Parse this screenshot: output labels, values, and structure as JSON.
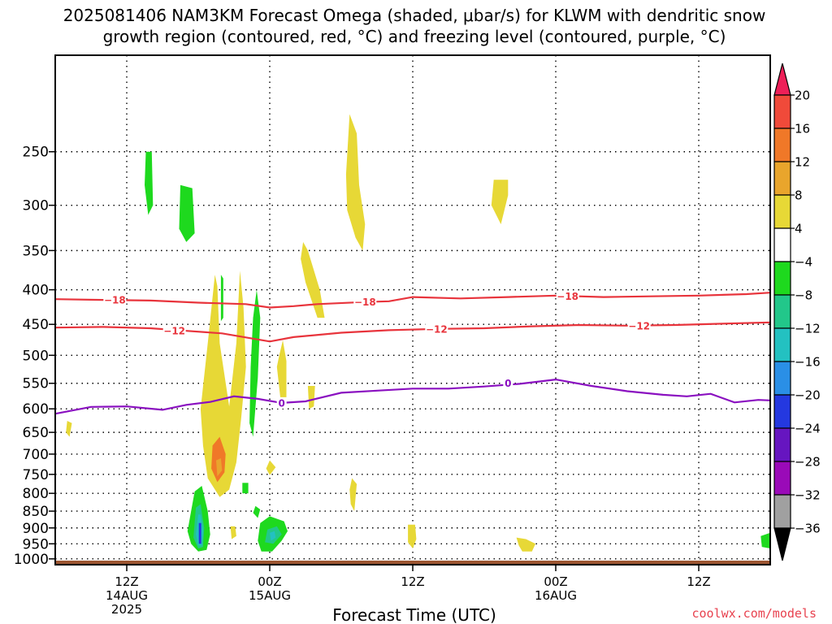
{
  "chart_data": {
    "type": "time-height cross section",
    "title_line1": "2025081406 NAM3KM Forecast Omega (shaded, μbar/s) for KLWM with dendritic snow",
    "title_line2": "growth region (contoured, red, °C) and freezing level (contoured, purple, °C)",
    "xlabel": "Forecast Time (UTC)",
    "credit": "coolwx.com/models",
    "xlim": [
      0,
      60
    ],
    "ylim": [
      1020,
      180
    ],
    "y_scale": "log-pressure",
    "y_ticks": [
      250,
      300,
      350,
      400,
      450,
      500,
      550,
      600,
      650,
      700,
      750,
      800,
      850,
      900,
      950,
      1000
    ],
    "x_ticks": [
      {
        "h": 6,
        "lines": [
          "12Z",
          "14AUG",
          "2025"
        ]
      },
      {
        "h": 18,
        "lines": [
          "00Z",
          "15AUG"
        ]
      },
      {
        "h": 30,
        "lines": [
          "12Z"
        ]
      },
      {
        "h": 42,
        "lines": [
          "00Z",
          "16AUG"
        ]
      },
      {
        "h": 54,
        "lines": [
          "12Z"
        ]
      }
    ],
    "grid": true,
    "colorbar": {
      "placement": "right",
      "labels": [
        "20",
        "16",
        "12",
        "8",
        "4",
        "−4",
        "−8",
        "−12",
        "−16",
        "−20",
        "−24",
        "−28",
        "−32",
        "−36"
      ],
      "colors_top_to_bottom": [
        "#ee1f58",
        "#f04a3a",
        "#f07828",
        "#e9a52c",
        "#e7d836",
        "#ffffff",
        "#1ed91e",
        "#22c78a",
        "#23c1c1",
        "#2a8fe6",
        "#2438e0",
        "#6615c0",
        "#9a0ab8",
        "#a0a0a0",
        "#000000"
      ]
    },
    "dendritic_contours": [
      {
        "label": "−18",
        "color": "#e8343c",
        "points": [
          [
            0,
            413
          ],
          [
            4,
            414
          ],
          [
            8,
            415
          ],
          [
            12,
            418
          ],
          [
            16,
            420
          ],
          [
            18,
            425
          ],
          [
            20,
            423
          ],
          [
            22,
            420
          ],
          [
            26,
            417
          ],
          [
            28,
            416
          ],
          [
            30,
            410
          ],
          [
            34,
            412
          ],
          [
            38,
            410
          ],
          [
            42,
            408
          ],
          [
            46,
            410
          ],
          [
            50,
            409
          ],
          [
            54,
            408
          ],
          [
            58,
            406
          ],
          [
            60,
            404
          ]
        ],
        "label_at": [
          [
            5,
            414
          ],
          [
            26,
            417
          ],
          [
            43,
            409
          ]
        ]
      },
      {
        "label": "−12",
        "color": "#e8343c",
        "points": [
          [
            0,
            455
          ],
          [
            4,
            454
          ],
          [
            8,
            456
          ],
          [
            11,
            460
          ],
          [
            14,
            464
          ],
          [
            18,
            477
          ],
          [
            20,
            470
          ],
          [
            24,
            463
          ],
          [
            28,
            459
          ],
          [
            32,
            457
          ],
          [
            36,
            456
          ],
          [
            40,
            453
          ],
          [
            44,
            451
          ],
          [
            48,
            452
          ],
          [
            52,
            451
          ],
          [
            56,
            449
          ],
          [
            60,
            447
          ]
        ],
        "label_at": [
          [
            10,
            460
          ],
          [
            32,
            457
          ],
          [
            49,
            452
          ]
        ]
      }
    ],
    "freezing_level": {
      "label": "0",
      "color": "#8a10c0",
      "points": [
        [
          0,
          610
        ],
        [
          3,
          596
        ],
        [
          6,
          595
        ],
        [
          9,
          602
        ],
        [
          11,
          592
        ],
        [
          13,
          586
        ],
        [
          15,
          575
        ],
        [
          17,
          580
        ],
        [
          19,
          588
        ],
        [
          21,
          585
        ],
        [
          24,
          568
        ],
        [
          27,
          564
        ],
        [
          30,
          560
        ],
        [
          33,
          560
        ],
        [
          36,
          556
        ],
        [
          39,
          551
        ],
        [
          42,
          543
        ],
        [
          45,
          555
        ],
        [
          48,
          565
        ],
        [
          51,
          572
        ],
        [
          53,
          575
        ],
        [
          55,
          570
        ],
        [
          57,
          587
        ],
        [
          59,
          582
        ],
        [
          60,
          583
        ]
      ],
      "label_at": [
        [
          19,
          588
        ],
        [
          38,
          550
        ]
      ]
    },
    "omega_shading": [
      {
        "color": "#e7d836",
        "points": [
          [
            12.2,
            600
          ],
          [
            12.8,
            480
          ],
          [
            13.4,
            380
          ],
          [
            13.6,
            395
          ],
          [
            13.8,
            480
          ],
          [
            14.6,
            595
          ],
          [
            15.2,
            480
          ],
          [
            15.5,
            375
          ],
          [
            15.8,
            425
          ],
          [
            16,
            520
          ],
          [
            15.6,
            620
          ],
          [
            15.2,
            720
          ],
          [
            14.6,
            790
          ],
          [
            13.8,
            810
          ],
          [
            12.8,
            760
          ],
          [
            12.4,
            680
          ]
        ]
      },
      {
        "color": "#1ed91e",
        "points": [
          [
            13.9,
            380
          ],
          [
            14.1,
            385
          ],
          [
            14.1,
            440
          ],
          [
            13.9,
            445
          ]
        ]
      },
      {
        "color": "#f07828",
        "points": [
          [
            13.2,
            680
          ],
          [
            13.8,
            660
          ],
          [
            14.3,
            700
          ],
          [
            14.2,
            745
          ],
          [
            13.6,
            770
          ],
          [
            13.1,
            735
          ]
        ]
      },
      {
        "color": "#e9a52c",
        "points": [
          [
            13.5,
            715
          ],
          [
            13.9,
            710
          ],
          [
            14.0,
            740
          ],
          [
            13.6,
            755
          ]
        ]
      },
      {
        "color": "#1ed91e",
        "points": [
          [
            16.6,
            440
          ],
          [
            16.9,
            400
          ],
          [
            17.2,
            440
          ],
          [
            17.0,
            540
          ],
          [
            16.6,
            660
          ],
          [
            16.3,
            630
          ],
          [
            16.4,
            520
          ]
        ]
      },
      {
        "color": "#e7d836",
        "points": [
          [
            18.8,
            500
          ],
          [
            19.1,
            475
          ],
          [
            19.4,
            510
          ],
          [
            19.4,
            580
          ],
          [
            18.9,
            580
          ],
          [
            18.6,
            520
          ]
        ]
      },
      {
        "color": "#e7d836",
        "points": [
          [
            21.2,
            555
          ],
          [
            21.8,
            555
          ],
          [
            21.7,
            595
          ],
          [
            21.3,
            600
          ]
        ]
      },
      {
        "color": "#e7d836",
        "points": [
          [
            20.8,
            340
          ],
          [
            21.2,
            350
          ],
          [
            22.2,
            400
          ],
          [
            22.6,
            440
          ],
          [
            22.0,
            440
          ],
          [
            21.0,
            390
          ],
          [
            20.6,
            360
          ]
        ]
      },
      {
        "color": "#e7d836",
        "points": [
          [
            24.7,
            220
          ],
          [
            25.3,
            235
          ],
          [
            25.5,
            280
          ],
          [
            26.0,
            320
          ],
          [
            25.8,
            350
          ],
          [
            25.2,
            335
          ],
          [
            24.5,
            305
          ],
          [
            24.4,
            270
          ]
        ]
      },
      {
        "color": "#e7d836",
        "points": [
          [
            36.8,
            275
          ],
          [
            38.0,
            275
          ],
          [
            38.0,
            290
          ],
          [
            37.4,
            320
          ],
          [
            36.6,
            300
          ]
        ]
      },
      {
        "color": "#1ed91e",
        "points": [
          [
            7.6,
            250
          ],
          [
            8.1,
            250
          ],
          [
            8.2,
            300
          ],
          [
            7.8,
            310
          ],
          [
            7.5,
            280
          ]
        ]
      },
      {
        "color": "#1ed91e",
        "points": [
          [
            10.5,
            280
          ],
          [
            11.5,
            283
          ],
          [
            11.7,
            330
          ],
          [
            11.0,
            340
          ],
          [
            10.4,
            325
          ]
        ]
      },
      {
        "color": "#e7d836",
        "points": [
          [
            1.0,
            625
          ],
          [
            1.4,
            630
          ],
          [
            1.2,
            660
          ],
          [
            0.9,
            650
          ]
        ]
      },
      {
        "color": "#e7d836",
        "points": [
          [
            18.0,
            715
          ],
          [
            18.5,
            732
          ],
          [
            18.0,
            752
          ],
          [
            17.7,
            735
          ]
        ]
      },
      {
        "color": "#1ed91e",
        "points": [
          [
            15.7,
            772
          ],
          [
            16.2,
            772
          ],
          [
            16.2,
            800
          ],
          [
            15.7,
            800
          ]
        ]
      },
      {
        "color": "#1ed91e",
        "points": [
          [
            16.8,
            835
          ],
          [
            17.2,
            845
          ],
          [
            17.0,
            870
          ],
          [
            16.6,
            855
          ]
        ]
      },
      {
        "color": "#e7d836",
        "points": [
          [
            24.9,
            760
          ],
          [
            25.3,
            775
          ],
          [
            25.1,
            850
          ],
          [
            24.8,
            830
          ],
          [
            24.7,
            790
          ]
        ]
      },
      {
        "color": "#1ed91e",
        "points": [
          [
            11.7,
            795
          ],
          [
            12.3,
            780
          ],
          [
            12.8,
            850
          ],
          [
            13.0,
            920
          ],
          [
            12.7,
            970
          ],
          [
            12.0,
            975
          ],
          [
            11.4,
            950
          ],
          [
            11.1,
            910
          ],
          [
            11.4,
            850
          ]
        ]
      },
      {
        "color": "#22c78a",
        "points": [
          [
            11.8,
            840
          ],
          [
            12.2,
            830
          ],
          [
            12.5,
            900
          ],
          [
            12.4,
            960
          ],
          [
            12.0,
            965
          ],
          [
            11.6,
            930
          ]
        ]
      },
      {
        "color": "#23c1c1",
        "points": [
          [
            12.0,
            860
          ],
          [
            12.2,
            860
          ],
          [
            12.4,
            910
          ],
          [
            12.3,
            955
          ],
          [
            12.0,
            955
          ],
          [
            11.8,
            920
          ]
        ]
      },
      {
        "color": "#2438e0",
        "points": [
          [
            12.05,
            885
          ],
          [
            12.25,
            885
          ],
          [
            12.25,
            950
          ],
          [
            12.05,
            950
          ]
        ]
      },
      {
        "color": "#e7d836",
        "points": [
          [
            14.7,
            895
          ],
          [
            15.1,
            895
          ],
          [
            15.2,
            925
          ],
          [
            14.8,
            935
          ]
        ]
      },
      {
        "color": "#1ed91e",
        "points": [
          [
            17.2,
            885
          ],
          [
            18.0,
            865
          ],
          [
            19.2,
            880
          ],
          [
            19.5,
            910
          ],
          [
            19.0,
            940
          ],
          [
            18.2,
            975
          ],
          [
            17.3,
            975
          ],
          [
            17.0,
            940
          ]
        ]
      },
      {
        "color": "#22c78a",
        "points": [
          [
            17.8,
            905
          ],
          [
            18.6,
            895
          ],
          [
            19.0,
            920
          ],
          [
            18.3,
            950
          ],
          [
            17.6,
            945
          ]
        ]
      },
      {
        "color": "#23c1c1",
        "points": [
          [
            18.0,
            915
          ],
          [
            18.4,
            910
          ],
          [
            18.5,
            930
          ],
          [
            18.1,
            940
          ]
        ]
      },
      {
        "color": "#e7d836",
        "points": [
          [
            29.6,
            890
          ],
          [
            30.2,
            890
          ],
          [
            30.3,
            935
          ],
          [
            30.0,
            965
          ],
          [
            29.6,
            945
          ]
        ]
      },
      {
        "color": "#e7d836",
        "points": [
          [
            38.7,
            930
          ],
          [
            39.5,
            935
          ],
          [
            40.3,
            950
          ],
          [
            40.0,
            975
          ],
          [
            39.2,
            975
          ],
          [
            38.9,
            955
          ]
        ]
      },
      {
        "color": "#1ed91e",
        "points": [
          [
            59.2,
            925
          ],
          [
            60,
            915
          ],
          [
            60,
            965
          ],
          [
            59.3,
            960
          ]
        ]
      }
    ]
  }
}
